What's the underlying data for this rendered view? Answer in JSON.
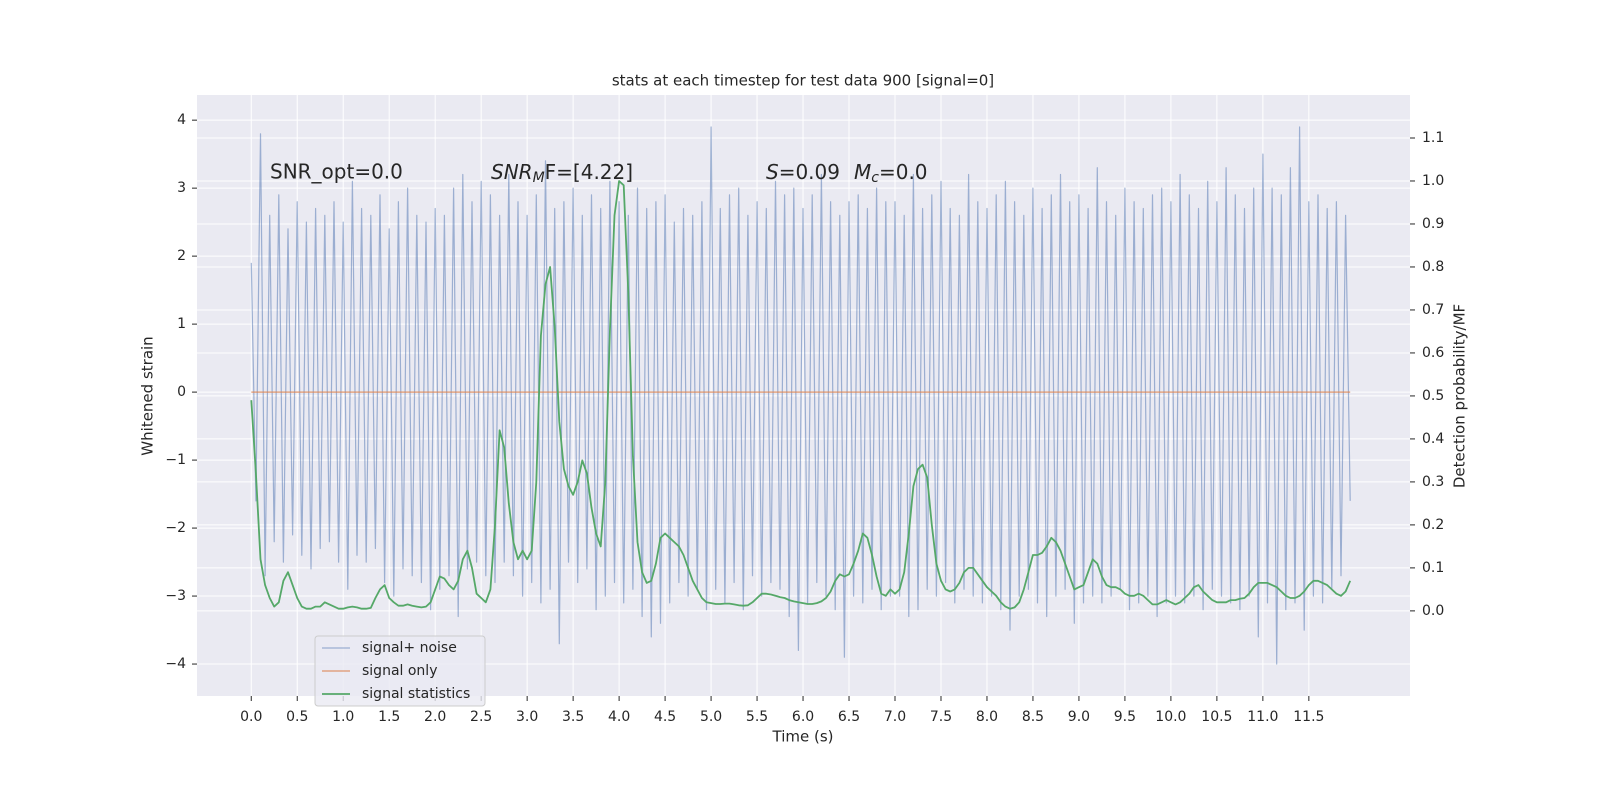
{
  "chart_data": {
    "type": "line",
    "title": "stats at each timestep for test data 900 [signal=0]",
    "xlabel": "Time (s)",
    "ylabel": "Whitened strain",
    "y2label": "Detection probability/MF",
    "annotations": [
      "SNR_opt=0.0",
      [
        "SNR",
        "M",
        "F=[4.22]"
      ],
      [
        "S",
        "=0.09",
        "M",
        "c",
        "=0.0"
      ]
    ],
    "grid": true,
    "legend": "lower left",
    "xlim": [
      -0.59,
      12.6
    ],
    "ylim": [
      -4.47,
      4.37
    ],
    "y2lim": [
      -0.198,
      1.2
    ],
    "xticks": [
      {
        "value": 0,
        "label": "0.0"
      },
      0.5,
      {
        "value": 1,
        "label": "1.0"
      },
      1.5,
      {
        "value": 2,
        "label": "2.0"
      },
      2.5,
      {
        "value": 3,
        "label": "3.0"
      },
      3.5,
      {
        "value": 4,
        "label": "4.0"
      },
      4.5,
      {
        "value": 5,
        "label": "5.0"
      },
      5.5,
      {
        "value": 6,
        "label": "6.0"
      },
      6.5,
      {
        "value": 7,
        "label": "7.0"
      },
      7.5,
      {
        "value": 8,
        "label": "8.0"
      },
      8.5,
      {
        "value": 9,
        "label": "9.0"
      },
      9.5,
      {
        "value": 10,
        "label": "10.0"
      },
      10.5,
      {
        "value": 11,
        "label": "11.0"
      },
      11.5
    ],
    "yticks": [
      {
        "value": -4,
        "label": "−4"
      },
      {
        "value": -3,
        "label": "−3"
      },
      {
        "value": -2,
        "label": "−2"
      },
      {
        "value": -1,
        "label": "−1"
      },
      0,
      1,
      2,
      3,
      4
    ],
    "y2ticks": [
      {
        "value": 0,
        "label": "0.0"
      },
      0.1,
      0.2,
      0.3,
      0.4,
      0.5,
      0.6,
      0.7,
      0.8,
      0.9,
      {
        "value": 1,
        "label": "1.0"
      },
      1.1
    ],
    "x": [
      0,
      0.05,
      0.1,
      0.15,
      0.2,
      0.25,
      0.3,
      0.35,
      0.4,
      0.45,
      0.5,
      0.55,
      0.6,
      0.65,
      0.7,
      0.75,
      0.8,
      0.85,
      0.9,
      0.95,
      1,
      1.05,
      1.1,
      1.15,
      1.2,
      1.25,
      1.3,
      1.35,
      1.4,
      1.45,
      1.5,
      1.55,
      1.6,
      1.65,
      1.7,
      1.75,
      1.8,
      1.85,
      1.9,
      1.95,
      2,
      2.05,
      2.1,
      2.15,
      2.2,
      2.25,
      2.3,
      2.35,
      2.4,
      2.45,
      2.5,
      2.55,
      2.6,
      2.65,
      2.7,
      2.75,
      2.8,
      2.85,
      2.9,
      2.95,
      3,
      3.05,
      3.1,
      3.15,
      3.2,
      3.25,
      3.3,
      3.35,
      3.4,
      3.45,
      3.5,
      3.55,
      3.6,
      3.65,
      3.7,
      3.75,
      3.8,
      3.85,
      3.9,
      3.95,
      4,
      4.05,
      4.1,
      4.15,
      4.2,
      4.25,
      4.3,
      4.35,
      4.4,
      4.45,
      4.5,
      4.55,
      4.6,
      4.65,
      4.7,
      4.75,
      4.8,
      4.85,
      4.9,
      4.95,
      5,
      5.05,
      5.1,
      5.15,
      5.2,
      5.25,
      5.3,
      5.35,
      5.4,
      5.45,
      5.5,
      5.55,
      5.6,
      5.65,
      5.7,
      5.75,
      5.8,
      5.85,
      5.9,
      5.95,
      6,
      6.05,
      6.1,
      6.15,
      6.2,
      6.25,
      6.3,
      6.35,
      6.4,
      6.45,
      6.5,
      6.55,
      6.6,
      6.65,
      6.7,
      6.75,
      6.8,
      6.85,
      6.9,
      6.95,
      7,
      7.05,
      7.1,
      7.15,
      7.2,
      7.25,
      7.3,
      7.35,
      7.4,
      7.45,
      7.5,
      7.55,
      7.6,
      7.65,
      7.7,
      7.75,
      7.8,
      7.85,
      7.9,
      7.95,
      8,
      8.05,
      8.1,
      8.15,
      8.2,
      8.25,
      8.3,
      8.35,
      8.4,
      8.45,
      8.5,
      8.55,
      8.6,
      8.65,
      8.7,
      8.75,
      8.8,
      8.85,
      8.9,
      8.95,
      9,
      9.05,
      9.1,
      9.15,
      9.2,
      9.25,
      9.3,
      9.35,
      9.4,
      9.45,
      9.5,
      9.55,
      9.6,
      9.65,
      9.7,
      9.75,
      9.8,
      9.85,
      9.9,
      9.95,
      10,
      10.05,
      10.1,
      10.15,
      10.2,
      10.25,
      10.3,
      10.35,
      10.4,
      10.45,
      10.5,
      10.55,
      10.6,
      10.65,
      10.7,
      10.75,
      10.8,
      10.85,
      10.9,
      10.95,
      11,
      11.05,
      11.1,
      11.15,
      11.2,
      11.25,
      11.3,
      11.35,
      11.4,
      11.45,
      11.5,
      11.55,
      11.6,
      11.65,
      11.7,
      11.75,
      11.8,
      11.85,
      11.9,
      11.95
    ],
    "series": [
      {
        "name": "signal+ noise",
        "color": "#4c72b0",
        "values": [
          1.9,
          -1.6,
          3.8,
          -2.7,
          2.6,
          -2.2,
          2.9,
          -2.5,
          2.4,
          -2.1,
          2.8,
          -2.4,
          2.5,
          -2.6,
          2.7,
          -2.3,
          2.6,
          -2.2,
          2.8,
          -2.5,
          2.5,
          -2.9,
          3.1,
          -2.4,
          2.7,
          -2.5,
          2.6,
          -2.3,
          2.9,
          -2.8,
          2.4,
          -3.0,
          2.8,
          -2.6,
          3.0,
          -2.7,
          2.6,
          -2.8,
          2.5,
          -3.2,
          2.7,
          -2.9,
          2.6,
          -2.7,
          3.0,
          -3.3,
          3.2,
          -2.6,
          2.8,
          -2.5,
          3.1,
          -2.7,
          2.9,
          -2.8,
          2.6,
          -2.5,
          3.2,
          -2.7,
          2.8,
          -3.0,
          2.6,
          -2.8,
          2.9,
          -3.1,
          3.4,
          -2.9,
          2.7,
          -3.7,
          2.8,
          -2.5,
          3.0,
          -2.8,
          2.6,
          -2.6,
          2.9,
          -3.2,
          2.7,
          -3.0,
          3.1,
          -2.8,
          2.8,
          -3.1,
          2.6,
          -2.9,
          3.0,
          -3.3,
          2.7,
          -3.6,
          2.8,
          -3.4,
          2.9,
          -3.1,
          2.5,
          -2.8,
          2.7,
          -3.0,
          2.6,
          -2.9,
          2.8,
          -3.2,
          3.9,
          -2.9,
          2.7,
          -3.1,
          2.9,
          -2.8,
          3.0,
          -3.2,
          2.6,
          -2.7,
          2.8,
          -3.0,
          2.7,
          -2.8,
          3.1,
          -2.9,
          2.9,
          -3.3,
          3.0,
          -3.8,
          2.7,
          -3.1,
          2.9,
          -2.8,
          3.2,
          -3.0,
          2.8,
          -3.2,
          2.6,
          -3.9,
          2.8,
          -3.0,
          2.9,
          -3.1,
          2.7,
          -2.9,
          3.0,
          -3.2,
          2.8,
          -3.0,
          2.8,
          -3.0,
          2.6,
          -3.3,
          3.2,
          -3.2,
          2.7,
          -2.9,
          2.9,
          -3.0,
          3.1,
          -2.8,
          2.7,
          -3.1,
          2.6,
          -2.9,
          3.2,
          -3.0,
          2.8,
          -3.1,
          2.7,
          -3.0,
          2.9,
          -3.2,
          3.1,
          -3.5,
          2.8,
          -3.0,
          2.6,
          -2.9,
          3.0,
          -3.1,
          2.7,
          -3.3,
          2.9,
          -3.0,
          3.2,
          -2.9,
          2.8,
          -3.4,
          2.9,
          -3.1,
          2.7,
          -3.0,
          3.3,
          -3.1,
          2.8,
          -3.0,
          2.6,
          -2.9,
          3.0,
          -3.2,
          2.8,
          -3.1,
          2.7,
          -3.0,
          2.9,
          -3.3,
          3.0,
          -3.1,
          2.8,
          -3.0,
          3.2,
          -3.1,
          2.9,
          -3.0,
          2.7,
          -3.2,
          3.1,
          -2.9,
          2.8,
          -3.0,
          3.3,
          -3.1,
          2.9,
          -3.2,
          2.7,
          -3.0,
          3.0,
          -3.6,
          3.5,
          -3.1,
          3.0,
          -4.0,
          2.9,
          -3.2,
          3.3,
          -3.1,
          3.9,
          -3.5,
          2.8,
          -3.0,
          2.9,
          -3.1,
          2.7,
          -2.9,
          2.8,
          -2.7,
          2.6,
          -1.6
        ]
      },
      {
        "name": "signal only",
        "color": "#dd8452",
        "x": [
          0,
          11.95
        ],
        "values": [
          0,
          0
        ]
      },
      {
        "name": "signal statistics",
        "color": "#55a868",
        "axis": "y2",
        "values": [
          0.49,
          0.32,
          0.12,
          0.06,
          0.03,
          0.01,
          0.02,
          0.07,
          0.09,
          0.06,
          0.03,
          0.01,
          0.005,
          0.005,
          0.01,
          0.01,
          0.02,
          0.015,
          0.01,
          0.005,
          0.005,
          0.008,
          0.01,
          0.008,
          0.005,
          0.005,
          0.007,
          0.03,
          0.05,
          0.06,
          0.03,
          0.02,
          0.012,
          0.012,
          0.015,
          0.012,
          0.01,
          0.008,
          0.01,
          0.02,
          0.05,
          0.08,
          0.075,
          0.06,
          0.05,
          0.07,
          0.12,
          0.14,
          0.1,
          0.04,
          0.03,
          0.02,
          0.05,
          0.2,
          0.42,
          0.38,
          0.25,
          0.16,
          0.12,
          0.14,
          0.12,
          0.14,
          0.3,
          0.64,
          0.76,
          0.8,
          0.66,
          0.44,
          0.33,
          0.29,
          0.27,
          0.3,
          0.35,
          0.32,
          0.24,
          0.18,
          0.15,
          0.3,
          0.65,
          0.92,
          1.0,
          0.99,
          0.74,
          0.36,
          0.16,
          0.09,
          0.065,
          0.07,
          0.11,
          0.17,
          0.18,
          0.17,
          0.16,
          0.15,
          0.13,
          0.1,
          0.07,
          0.05,
          0.03,
          0.02,
          0.018,
          0.016,
          0.016,
          0.017,
          0.017,
          0.015,
          0.013,
          0.012,
          0.013,
          0.02,
          0.03,
          0.04,
          0.04,
          0.038,
          0.035,
          0.032,
          0.03,
          0.025,
          0.022,
          0.02,
          0.018,
          0.016,
          0.016,
          0.018,
          0.022,
          0.03,
          0.045,
          0.07,
          0.085,
          0.08,
          0.085,
          0.11,
          0.14,
          0.18,
          0.17,
          0.13,
          0.08,
          0.04,
          0.035,
          0.05,
          0.04,
          0.05,
          0.09,
          0.18,
          0.29,
          0.33,
          0.34,
          0.31,
          0.2,
          0.11,
          0.07,
          0.05,
          0.045,
          0.05,
          0.065,
          0.09,
          0.1,
          0.1,
          0.085,
          0.07,
          0.055,
          0.045,
          0.035,
          0.02,
          0.01,
          0.005,
          0.008,
          0.02,
          0.05,
          0.09,
          0.13,
          0.13,
          0.135,
          0.15,
          0.17,
          0.16,
          0.14,
          0.11,
          0.08,
          0.05,
          0.055,
          0.06,
          0.09,
          0.12,
          0.11,
          0.08,
          0.06,
          0.055,
          0.055,
          0.05,
          0.04,
          0.035,
          0.035,
          0.04,
          0.035,
          0.025,
          0.015,
          0.015,
          0.02,
          0.025,
          0.02,
          0.015,
          0.02,
          0.03,
          0.04,
          0.055,
          0.06,
          0.045,
          0.035,
          0.025,
          0.02,
          0.02,
          0.02,
          0.025,
          0.025,
          0.028,
          0.03,
          0.04,
          0.055,
          0.065,
          0.065,
          0.065,
          0.06,
          0.055,
          0.045,
          0.035,
          0.03,
          0.03,
          0.035,
          0.045,
          0.06,
          0.07,
          0.07,
          0.065,
          0.06,
          0.05,
          0.04,
          0.035,
          0.045,
          0.07
        ]
      }
    ]
  }
}
